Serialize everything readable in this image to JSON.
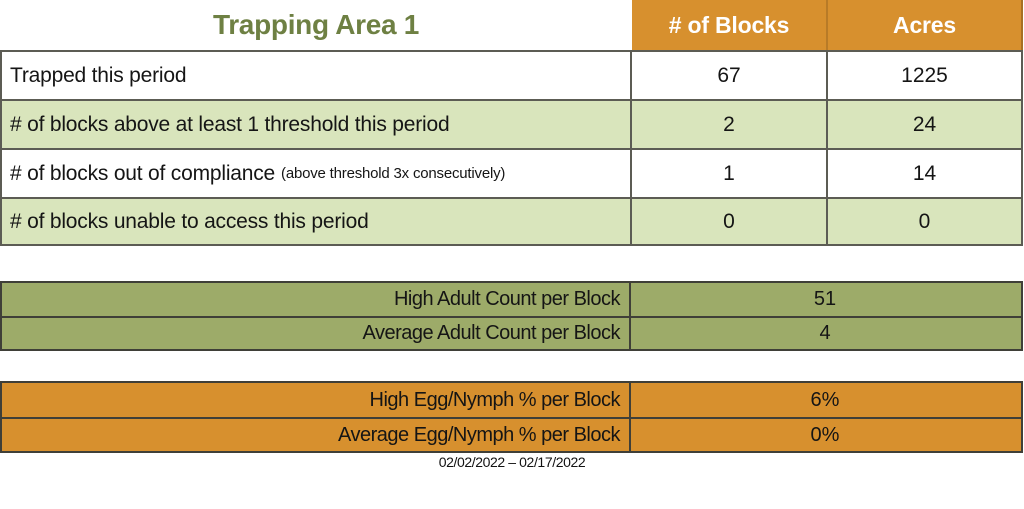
{
  "title": "Trapping Area 1",
  "columns": [
    "# of Blocks",
    "Acres"
  ],
  "main_table": {
    "rows": [
      {
        "label": "Trapped this period",
        "note": "",
        "blocks": "67",
        "acres": "1225"
      },
      {
        "label": "# of blocks above at least 1 threshold this period",
        "note": "",
        "blocks": "2",
        "acres": "24"
      },
      {
        "label": "# of blocks out of compliance",
        "note": "(above threshold 3x consecutively)",
        "blocks": "1",
        "acres": "14"
      },
      {
        "label": "# of blocks unable to access this period",
        "note": "",
        "blocks": "0",
        "acres": "0"
      }
    ]
  },
  "adult_table": {
    "rows": [
      {
        "label": "High Adult Count per Block",
        "value": "51"
      },
      {
        "label": "Average Adult Count per Block",
        "value": "4"
      }
    ]
  },
  "egg_table": {
    "rows": [
      {
        "label": "High Egg/Nymph % per Block",
        "value": "6%"
      },
      {
        "label": "Average Egg/Nymph % per Block",
        "value": "0%"
      }
    ]
  },
  "footer": {
    "date_range": "02/02/2022 – 02/17/2022"
  },
  "colors": {
    "header_orange": "#d7902e",
    "light_green_row": "#d9e5bc",
    "olive_section": "#9dab69",
    "title_green": "#6e8043",
    "table_border": "#5c5c54",
    "section_border": "#3f3f38",
    "header_text": "#ffffff"
  }
}
